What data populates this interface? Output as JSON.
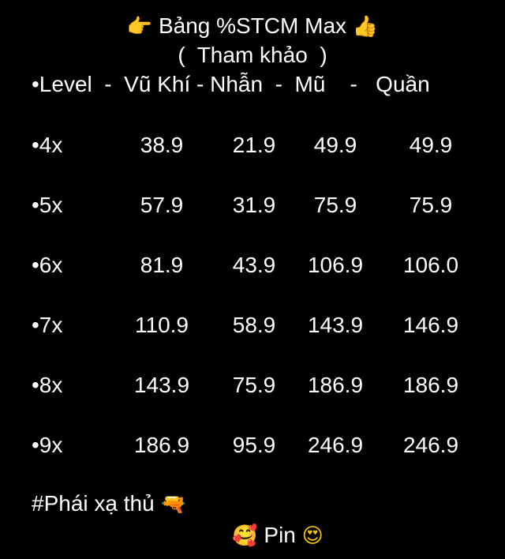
{
  "title": {
    "left_emoji": "👉",
    "text": "Bảng %STCM Max",
    "right_emoji": "👍"
  },
  "subtitle": "(  Tham khảo  )",
  "header": "•Level  -  Vũ Khí - Nhẫn  -  Mũ    -   Quần",
  "rows": [
    {
      "level": "•4x",
      "values": [
        "38.9",
        "21.9",
        "49.9",
        "49.9"
      ]
    },
    {
      "level": "•5x",
      "values": [
        "57.9",
        "31.9",
        "75.9",
        "75.9"
      ]
    },
    {
      "level": "•6x",
      "values": [
        "81.9",
        "43.9",
        "106.9",
        "106.0"
      ]
    },
    {
      "level": "•7x",
      "values": [
        "110.9",
        "58.9",
        "143.9",
        "146.9"
      ]
    },
    {
      "level": "•8x",
      "values": [
        "143.9",
        "75.9",
        "186.9",
        "186.9"
      ]
    },
    {
      "level": "•9x",
      "values": [
        "186.9",
        "95.9",
        "246.9",
        "246.9"
      ]
    }
  ],
  "footer": {
    "tag": "#Phái xạ thủ",
    "tag_emoji": "🔫",
    "pin_left_emoji": "🥰",
    "pin": "Pin",
    "pin_right_emoji": "😍"
  }
}
